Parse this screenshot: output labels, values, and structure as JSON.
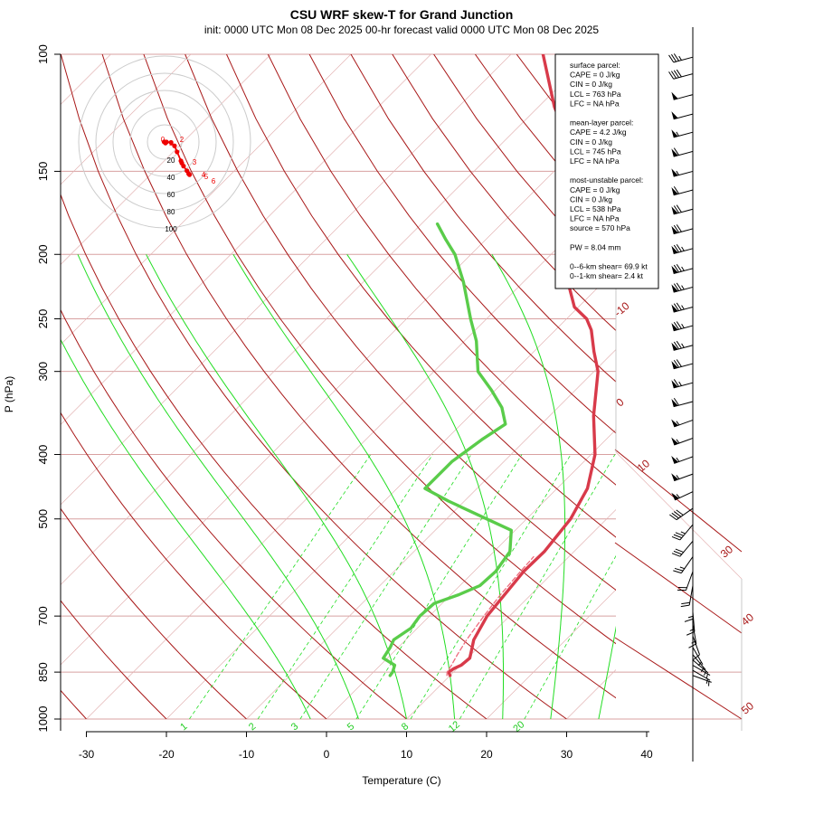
{
  "chart_data": {
    "type": "line",
    "title": "CSU WRF skew-T for Grand Junction",
    "subtitle": "init: 0000 UTC Mon 08 Dec 2025    00-hr forecast valid 0000 UTC Mon 08 Dec 2025",
    "xlabel": "Temperature (C)",
    "ylabel": "P (hPa)",
    "xlim": [
      -33,
      44
    ],
    "ylim": [
      1000,
      100
    ],
    "y_scale": "log",
    "x_ticks": [
      -30,
      -20,
      -10,
      0,
      10,
      20,
      30,
      40
    ],
    "x_tick_labels": [
      "-30",
      "-20",
      "-10",
      "0",
      "10",
      "20",
      "30",
      "40"
    ],
    "p_ticks": [
      100,
      150,
      200,
      250,
      300,
      400,
      500,
      700,
      850,
      1000
    ],
    "p_tick_labels": [
      "100",
      "150",
      "200",
      "250",
      "300",
      "400",
      "500",
      "700",
      "850",
      "1000"
    ],
    "isotherm_labels": [
      "-10",
      "0",
      "10",
      "30",
      "40",
      "50"
    ],
    "mixing_ratio_labels": [
      "1",
      "2",
      "3",
      "5",
      "8",
      "12",
      "20"
    ],
    "colors": {
      "temperature": "#d83a4a",
      "dewpoint": "#5acc4a",
      "isotherm": "#a81818",
      "mixing_ratio": "#22dd22",
      "isobar": "#d8a0a0",
      "hodograph": "#ee0000"
    },
    "series": [
      {
        "name": "temperature",
        "points": [
          [
            860,
            10.0
          ],
          [
            850,
            9.4
          ],
          [
            840,
            9.6
          ],
          [
            830,
            10.1
          ],
          [
            810,
            10.3
          ],
          [
            790,
            9.6
          ],
          [
            760,
            8.5
          ],
          [
            700,
            7.2
          ],
          [
            600,
            6.2
          ],
          [
            560,
            6.3
          ],
          [
            500,
            5.5
          ],
          [
            450,
            3.8
          ],
          [
            400,
            0.5
          ],
          [
            350,
            -4.5
          ],
          [
            300,
            -9.5
          ],
          [
            280,
            -12.5
          ],
          [
            260,
            -15.5
          ],
          [
            250,
            -17.5
          ],
          [
            240,
            -20.5
          ],
          [
            215,
            -25.5
          ],
          [
            200,
            -28.0
          ],
          [
            175,
            -32.5
          ],
          [
            150,
            -37.5
          ],
          [
            135,
            -42.0
          ],
          [
            120,
            -48.0
          ],
          [
            100,
            -56.0
          ]
        ]
      },
      {
        "name": "dewpoint",
        "points": [
          [
            860,
            2.5
          ],
          [
            850,
            2.4
          ],
          [
            830,
            1.8
          ],
          [
            810,
            -0.5
          ],
          [
            780,
            -1.0
          ],
          [
            760,
            -1.5
          ],
          [
            730,
            -0.8
          ],
          [
            700,
            -1.2
          ],
          [
            670,
            -1.0
          ],
          [
            650,
            1.0
          ],
          [
            630,
            2.5
          ],
          [
            600,
            2.7
          ],
          [
            560,
            2.0
          ],
          [
            520,
            -0.5
          ],
          [
            500,
            -5.0
          ],
          [
            470,
            -12.0
          ],
          [
            450,
            -16.5
          ],
          [
            410,
            -16.5
          ],
          [
            380,
            -15.5
          ],
          [
            360,
            -14.5
          ],
          [
            340,
            -17.0
          ],
          [
            320,
            -20.5
          ],
          [
            300,
            -24.5
          ],
          [
            270,
            -28.5
          ],
          [
            250,
            -32.0
          ],
          [
            220,
            -37.5
          ],
          [
            200,
            -42.0
          ],
          [
            190,
            -45.0
          ],
          [
            180,
            -48.0
          ]
        ]
      },
      {
        "name": "parcel",
        "points": [
          [
            860,
            9.6
          ],
          [
            850,
            9.2
          ],
          [
            830,
            8.9
          ],
          [
            800,
            8.3
          ],
          [
            760,
            7.6
          ],
          [
            745,
            7.4
          ],
          [
            700,
            6.8
          ],
          [
            650,
            6.2
          ],
          [
            600,
            5.8
          ],
          [
            570,
            5.6
          ]
        ]
      }
    ],
    "hodograph": {
      "ring_labels": [
        "20",
        "40",
        "60",
        "80",
        "100"
      ],
      "points_knots": [
        [
          -0.6,
          0.2
        ],
        [
          0.0,
          0.0
        ],
        [
          1.0,
          -1.2
        ],
        [
          2.2,
          0.0
        ],
        [
          7.5,
          -0.5
        ],
        [
          11.5,
          -4.5
        ],
        [
          14.5,
          -11.5
        ],
        [
          19.0,
          -22.0
        ],
        [
          20.0,
          -24.5
        ],
        [
          22.0,
          -28.0
        ],
        [
          26.0,
          -33.5
        ],
        [
          28.0,
          -37.0
        ],
        [
          29.0,
          -38.0
        ]
      ],
      "point_labels": [
        "0",
        "1",
        "2",
        "3",
        "4",
        "5",
        "6"
      ]
    },
    "wind_barbs": [
      {
        "p": 101,
        "spd": 35,
        "dir": 255
      },
      {
        "p": 107,
        "spd": 40,
        "dir": 255
      },
      {
        "p": 115,
        "spd": 50,
        "dir": 255
      },
      {
        "p": 123,
        "spd": 50,
        "dir": 255
      },
      {
        "p": 131,
        "spd": 55,
        "dir": 255
      },
      {
        "p": 140,
        "spd": 60,
        "dir": 255
      },
      {
        "p": 150,
        "spd": 55,
        "dir": 255
      },
      {
        "p": 160,
        "spd": 60,
        "dir": 255
      },
      {
        "p": 171,
        "spd": 70,
        "dir": 255
      },
      {
        "p": 183,
        "spd": 70,
        "dir": 255
      },
      {
        "p": 196,
        "spd": 75,
        "dir": 255
      },
      {
        "p": 210,
        "spd": 75,
        "dir": 255
      },
      {
        "p": 224,
        "spd": 75,
        "dir": 255
      },
      {
        "p": 240,
        "spd": 75,
        "dir": 255
      },
      {
        "p": 256,
        "spd": 75,
        "dir": 255
      },
      {
        "p": 274,
        "spd": 75,
        "dir": 255
      },
      {
        "p": 292,
        "spd": 70,
        "dir": 255
      },
      {
        "p": 312,
        "spd": 65,
        "dir": 255
      },
      {
        "p": 333,
        "spd": 60,
        "dir": 255
      },
      {
        "p": 355,
        "spd": 55,
        "dir": 250
      },
      {
        "p": 378,
        "spd": 55,
        "dir": 250
      },
      {
        "p": 403,
        "spd": 55,
        "dir": 250
      },
      {
        "p": 428,
        "spd": 55,
        "dir": 250
      },
      {
        "p": 455,
        "spd": 55,
        "dir": 245
      },
      {
        "p": 482,
        "spd": 40,
        "dir": 235
      },
      {
        "p": 510,
        "spd": 35,
        "dir": 220
      },
      {
        "p": 540,
        "spd": 30,
        "dir": 220
      },
      {
        "p": 570,
        "spd": 25,
        "dir": 215
      },
      {
        "p": 600,
        "spd": 20,
        "dir": 200
      },
      {
        "p": 630,
        "spd": 20,
        "dir": 190
      },
      {
        "p": 660,
        "spd": 15,
        "dir": 180
      },
      {
        "p": 690,
        "spd": 15,
        "dir": 175
      },
      {
        "p": 720,
        "spd": 15,
        "dir": 170
      },
      {
        "p": 750,
        "spd": 10,
        "dir": 160
      },
      {
        "p": 780,
        "spd": 5,
        "dir": 150
      },
      {
        "p": 800,
        "spd": 5,
        "dir": 140
      },
      {
        "p": 815,
        "spd": 5,
        "dir": 130
      },
      {
        "p": 830,
        "spd": 5,
        "dir": 120
      },
      {
        "p": 845,
        "spd": 5,
        "dir": 120
      },
      {
        "p": 860,
        "spd": 5,
        "dir": 110
      }
    ],
    "stats_lines": [
      "surface parcel:",
      "CAPE = 0 J/kg",
      "CIN = 0 J/kg",
      "LCL = 763 hPa",
      "LFC = NA hPa",
      "",
      "mean-layer parcel:",
      "CAPE = 4.2 J/kg",
      "CIN = 0 J/kg",
      "LCL = 745 hPa",
      "LFC = NA hPa",
      "",
      "most-unstable parcel:",
      "CAPE = 0 J/kg",
      "CIN = 0 J/kg",
      "LCL = 538 hPa",
      "LFC = NA hPa",
      "source = 570 hPa",
      "",
      "PW =  8.04 mm",
      "",
      "0--6-km shear= 69.9 kt",
      "0--1-km shear= 2.4 kt"
    ]
  }
}
